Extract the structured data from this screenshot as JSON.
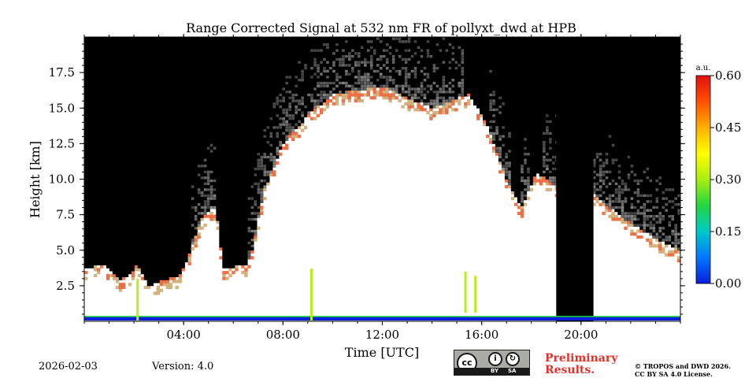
{
  "chart_data": {
    "type": "heatmap",
    "title": "Range Corrected Signal at 532 nm FR of pollyxt_dwd at HPB",
    "xlabel": "Time [UTC]",
    "ylabel": "Height [km]",
    "xlim_hours": [
      0,
      24
    ],
    "ylim_km": [
      0,
      20
    ],
    "x_ticks": [
      {
        "value": 4,
        "label": "04:00"
      },
      {
        "value": 8,
        "label": "08:00"
      },
      {
        "value": 12,
        "label": "12:00"
      },
      {
        "value": 16,
        "label": "16:00"
      },
      {
        "value": 20,
        "label": "20:00"
      }
    ],
    "y_ticks": [
      {
        "value": 2.5,
        "label": "2.5"
      },
      {
        "value": 5.0,
        "label": "5.0"
      },
      {
        "value": 7.5,
        "label": "7.5"
      },
      {
        "value": 10.0,
        "label": "10.0"
      },
      {
        "value": 12.5,
        "label": "12.5"
      },
      {
        "value": 15.0,
        "label": "15.0"
      },
      {
        "value": 17.5,
        "label": "17.5"
      }
    ],
    "colorbar": {
      "label": "a.u.",
      "range": [
        0,
        0.6
      ],
      "ticks": [
        {
          "value": 0.0,
          "label": "0.00"
        },
        {
          "value": 0.15,
          "label": "0.15"
        },
        {
          "value": 0.3,
          "label": "0.30"
        },
        {
          "value": 0.45,
          "label": "0.45"
        },
        {
          "value": 0.6,
          "label": "0.60"
        }
      ],
      "colors": [
        "#0a1ed8",
        "#0077ff",
        "#00c8c8",
        "#22d640",
        "#a8ee10",
        "#ffff00",
        "#ffb000",
        "#ff5000",
        "#e01010"
      ]
    },
    "no_data_spans_hours": [
      [
        19.0,
        20.5
      ]
    ],
    "near_ground_signal_band_km": [
      0.0,
      0.3
    ],
    "boundary_layer_top_km": [
      2.5,
      4.5
    ]
  },
  "footer": {
    "date": "2026-02-03",
    "version": "Version: 4.0",
    "preliminary_line1": "Preliminary",
    "preliminary_line2": "Results.",
    "copyright_line1": "© TROPOS and DWD 2026.",
    "copyright_line2": "CC BY SA 4.0 License.",
    "license_badge": {
      "cc": "cc",
      "by": "BY",
      "sa": "SA"
    }
  }
}
